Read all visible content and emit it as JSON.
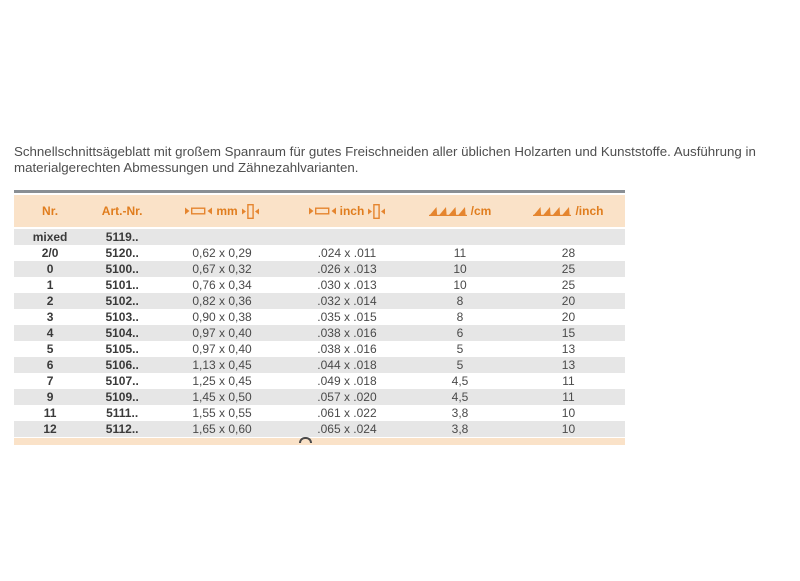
{
  "description": {
    "line1": "Schnellschnittsägeblatt mit großem Spanraum für gutes Freischneiden aller üblichen Holzarten und Kunststoffe. Ausführung in",
    "line2": "materialgerechten Abmessungen und Zähnezahlvarianten."
  },
  "table": {
    "headers": [
      "Nr.",
      "Art.-Nr.",
      "mm",
      "inch",
      "/cm",
      "/inch"
    ],
    "header_icons": [
      "none",
      "none",
      "blade-width-and-thickness",
      "blade-width-and-thickness",
      "saw-teeth",
      "saw-teeth"
    ],
    "rows": [
      {
        "nr": "mixed",
        "art": "5119..",
        "mm": "",
        "inch": "",
        "per_cm": "",
        "per_inch": ""
      },
      {
        "nr": "2/0",
        "art": "5120..",
        "mm": "0,62 x 0,29",
        "inch": ".024 x .011",
        "per_cm": "11",
        "per_inch": "28"
      },
      {
        "nr": "0",
        "art": "5100..",
        "mm": "0,67 x 0,32",
        "inch": ".026 x .013",
        "per_cm": "10",
        "per_inch": "25"
      },
      {
        "nr": "1",
        "art": "5101..",
        "mm": "0,76 x 0,34",
        "inch": ".030 x .013",
        "per_cm": "10",
        "per_inch": "25"
      },
      {
        "nr": "2",
        "art": "5102..",
        "mm": "0,82 x 0,36",
        "inch": ".032 x .014",
        "per_cm": "8",
        "per_inch": "20"
      },
      {
        "nr": "3",
        "art": "5103..",
        "mm": "0,90 x 0,38",
        "inch": ".035 x .015",
        "per_cm": "8",
        "per_inch": "20"
      },
      {
        "nr": "4",
        "art": "5104..",
        "mm": "0,97 x 0,40",
        "inch": ".038 x .016",
        "per_cm": "6",
        "per_inch": "15"
      },
      {
        "nr": "5",
        "art": "5105..",
        "mm": "0,97 x 0,40",
        "inch": ".038 x .016",
        "per_cm": "5",
        "per_inch": "13"
      },
      {
        "nr": "6",
        "art": "5106..",
        "mm": "1,13 x 0,45",
        "inch": ".044 x .018",
        "per_cm": "5",
        "per_inch": "13"
      },
      {
        "nr": "7",
        "art": "5107..",
        "mm": "1,25 x 0,45",
        "inch": ".049 x .018",
        "per_cm": "4,5",
        "per_inch": "11"
      },
      {
        "nr": "9",
        "art": "5109..",
        "mm": "1,45 x 0,50",
        "inch": ".057 x .020",
        "per_cm": "4,5",
        "per_inch": "11"
      },
      {
        "nr": "11",
        "art": "5111..",
        "mm": "1,55 x 0,55",
        "inch": ".061 x .022",
        "per_cm": "3,8",
        "per_inch": "10"
      },
      {
        "nr": "12",
        "art": "5112..",
        "mm": "1,65 x 0,60",
        "inch": ".065 x .024",
        "per_cm": "3,8",
        "per_inch": "10"
      }
    ]
  },
  "colors": {
    "header_bg": "#fae2c8",
    "header_text": "#e07d1e",
    "icon_orange": "#e5852f",
    "row_alt_bg": "#e6e6e6",
    "row_bg": "#ffffff",
    "top_rule": "#8a8f94",
    "body_text": "#4e4e4e",
    "cell_text": "#4a4a4a"
  }
}
